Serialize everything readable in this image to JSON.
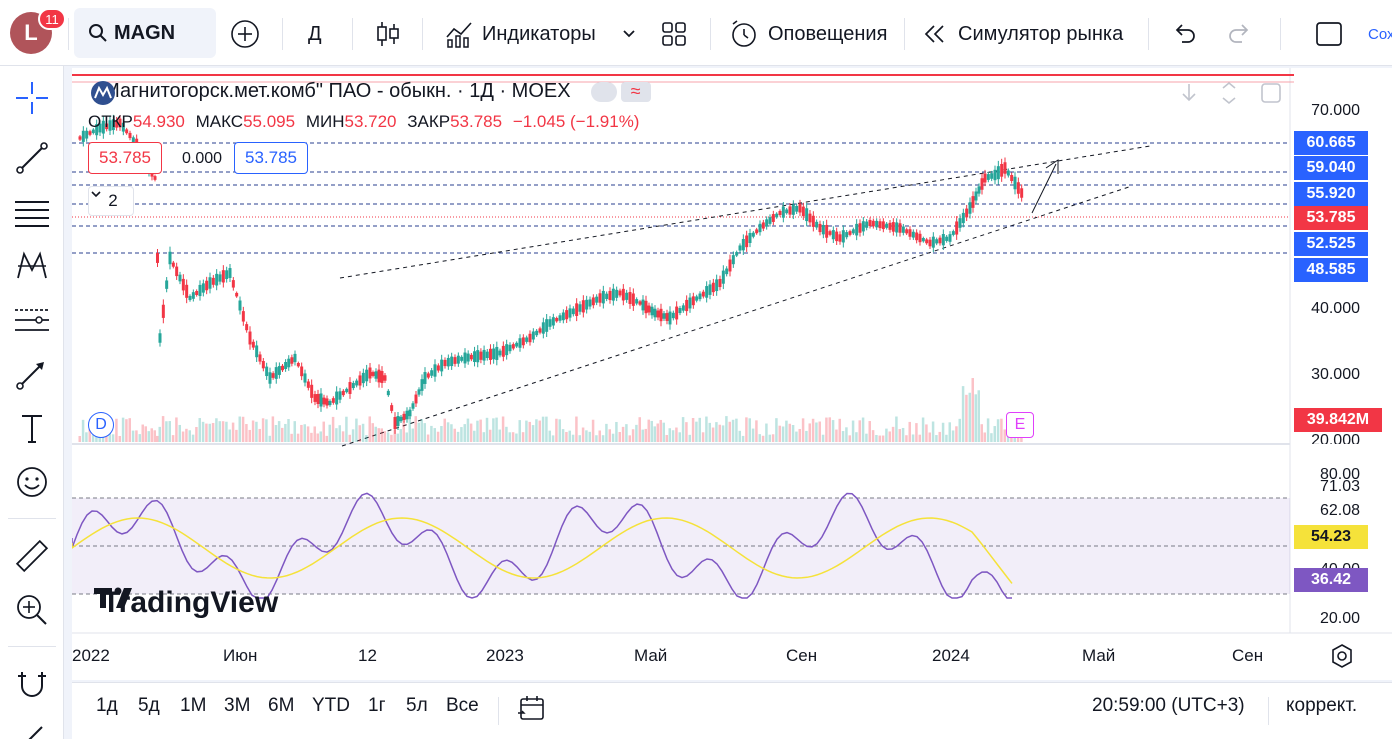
{
  "avatar": {
    "letter": "L",
    "badge": "11"
  },
  "toolbar": {
    "symbol": "MAGN",
    "interval": "Д",
    "indicators_label": "Индикаторы",
    "alerts_label": "Оповещения",
    "replay_label": "Симулятор рынка",
    "save_label": "Сох"
  },
  "legend": {
    "title": "\"Магнитогорск.мет.комб\" ПАО - обыкн. · 1Д · MOEX",
    "open_label": "ОТКР",
    "open": "54.930",
    "high_label": "МАКС",
    "high": "55.095",
    "low_label": "МИН",
    "low": "53.720",
    "close_label": "ЗАКР",
    "close": "53.785",
    "change": "−1.045 (−1.91%)",
    "bid": "53.785",
    "spread": "0.000",
    "ask": "53.785",
    "collapsed_count": "2"
  },
  "price_axis": {
    "labels": [
      "70.000",
      "40.000",
      "30.000",
      "20.000"
    ],
    "tags": [
      {
        "text": "60.665",
        "color": "#2962ff"
      },
      {
        "text": "59.040",
        "color": "#2962ff"
      },
      {
        "text": "55.920",
        "color": "#2962ff"
      },
      {
        "text": "53.785",
        "color": "#f23645"
      },
      {
        "text": "52.525",
        "color": "#2962ff"
      },
      {
        "text": "48.585",
        "color": "#2962ff"
      },
      {
        "text": "39.842M",
        "color": "#f23645"
      }
    ]
  },
  "rsi_axis": {
    "labels": [
      "80.00",
      "71.03",
      "62.08",
      "20.00"
    ],
    "rsi_ma": "54.23",
    "rsi": "36.42",
    "hidden_label": "40.00"
  },
  "time_axis": [
    "2022",
    "Июн",
    "12",
    "2023",
    "Май",
    "Сен",
    "2024",
    "Май",
    "Сен"
  ],
  "markers": {
    "dividend": "D",
    "earnings": "E"
  },
  "logo": "TradingView",
  "bottom": {
    "ranges": [
      "1д",
      "5д",
      "1М",
      "3М",
      "6М",
      "YTD",
      "1г",
      "5л",
      "Все"
    ],
    "time": "20:59:00 (UTC+3)",
    "adjust": "коррект."
  },
  "colors": {
    "up": "#26a69a",
    "down": "#f23645",
    "accent": "#2962ff",
    "rsi": "#7e57c2",
    "rsi_ma": "#f5e23a"
  }
}
